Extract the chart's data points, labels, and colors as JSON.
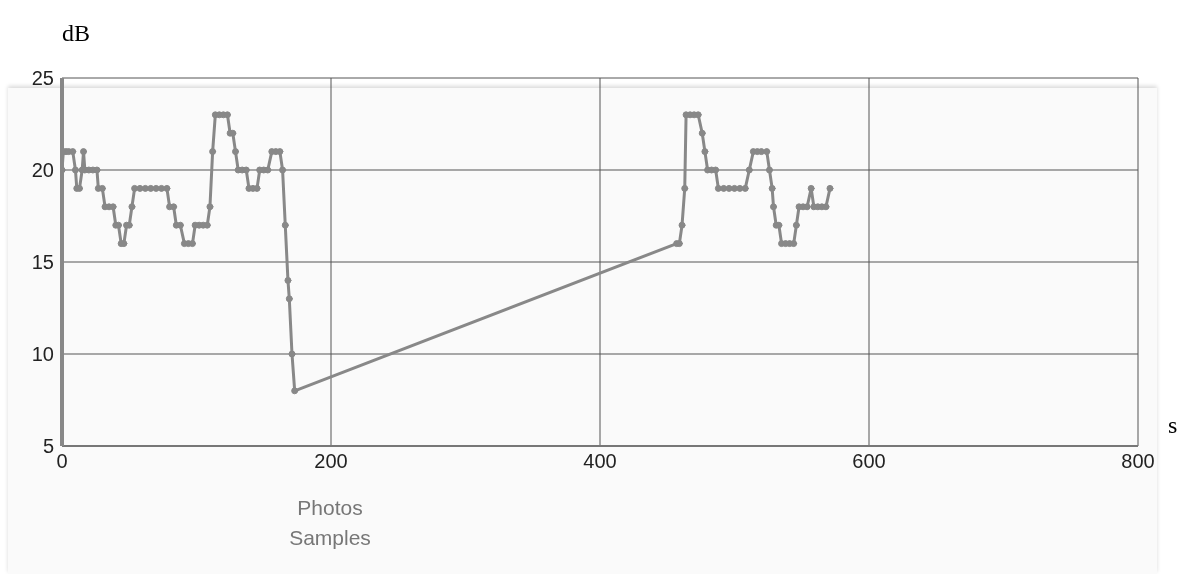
{
  "chart_data": {
    "type": "line",
    "xlabel": "s",
    "ylabel": "dB",
    "annotations": [
      "Photos",
      "Samples"
    ],
    "xlim": [
      0,
      800
    ],
    "xticks": [
      0,
      200,
      400,
      600,
      800
    ],
    "ylim": [
      5,
      25
    ],
    "yticks": [
      5,
      10,
      15,
      20,
      25
    ],
    "grid": true,
    "marker": "circle",
    "line_style": "solid",
    "series": [
      {
        "color": "#888888",
        "x": [
          0,
          1,
          3,
          5,
          8,
          10,
          11,
          13,
          15,
          16,
          17,
          20,
          23,
          26,
          27,
          30,
          32,
          35,
          38,
          40,
          42,
          44,
          46,
          48,
          50,
          52,
          54,
          58,
          62,
          66,
          70,
          74,
          78,
          80,
          83,
          85,
          88,
          91,
          94,
          97,
          99,
          102,
          105,
          108,
          110,
          112,
          114,
          117,
          120,
          123,
          125,
          127,
          129,
          131,
          134,
          137,
          139,
          142,
          145,
          147,
          150,
          153,
          156,
          159,
          162,
          164,
          166,
          168,
          169,
          171,
          173,
          457,
          459,
          461,
          463,
          464,
          467,
          470,
          473,
          476,
          478,
          480,
          483,
          486,
          488,
          492,
          496,
          500,
          504,
          508,
          511,
          514,
          517,
          520,
          524,
          526,
          528,
          529,
          531,
          533,
          535,
          538,
          541,
          544,
          546,
          548,
          551,
          554,
          557,
          559,
          562,
          565,
          568,
          571
        ],
        "values": [
          20,
          21,
          21,
          21,
          21,
          20,
          19,
          19,
          20,
          21,
          20,
          20,
          20,
          20,
          19,
          19,
          18,
          18,
          18,
          17,
          17,
          16,
          16,
          17,
          17,
          18,
          19,
          19,
          19,
          19,
          19,
          19,
          19,
          18,
          18,
          17,
          17,
          16,
          16,
          16,
          17,
          17,
          17,
          17,
          18,
          21,
          23,
          23,
          23,
          23,
          22,
          22,
          21,
          20,
          20,
          20,
          19,
          19,
          19,
          20,
          20,
          20,
          21,
          21,
          21,
          20,
          17,
          14,
          13,
          10,
          8,
          16,
          16,
          17,
          19,
          23,
          23,
          23,
          23,
          22,
          21,
          20,
          20,
          20,
          19,
          19,
          19,
          19,
          19,
          19,
          20,
          21,
          21,
          21,
          21,
          20,
          19,
          18,
          17,
          17,
          16,
          16,
          16,
          16,
          17,
          18,
          18,
          18,
          19,
          18,
          18,
          18,
          18,
          19
        ]
      }
    ]
  }
}
